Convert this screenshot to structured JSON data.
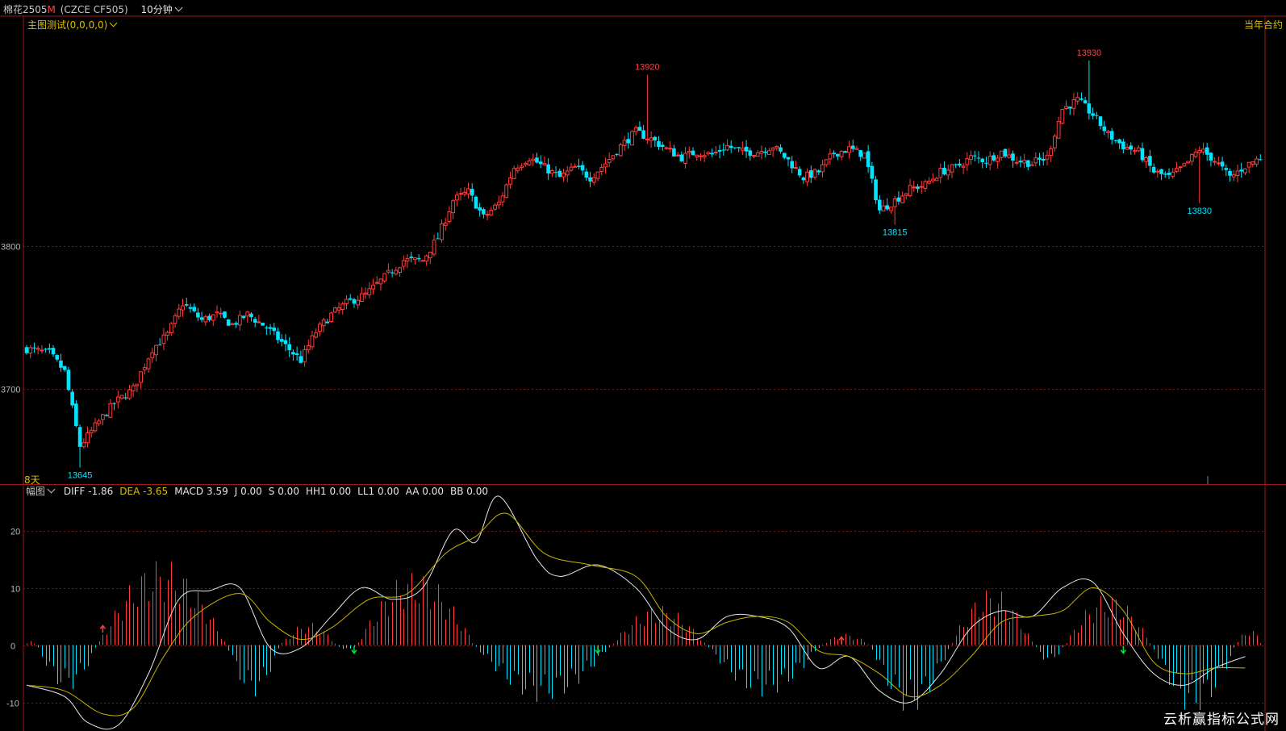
{
  "header": {
    "symbol": "棉花2505",
    "symbol_badge": "M",
    "code": "(CZCE CF505)",
    "period": "10分钟"
  },
  "main_chart": {
    "indicator_title": "主图测试(0,0,0,0)",
    "corner_label": "当年合约",
    "days_label": "8天"
  },
  "sub_chart": {
    "title": "幅图",
    "values": [
      {
        "label": "DIFF",
        "value": "-1.86",
        "color": "#e6e6e6"
      },
      {
        "label": "DEA",
        "value": "-3.65",
        "color": "#d8c000"
      },
      {
        "label": "MACD",
        "value": "3.59",
        "color": "#e6e6e6"
      },
      {
        "label": "J",
        "value": "0.00",
        "color": "#e6e6e6"
      },
      {
        "label": "S",
        "value": "0.00",
        "color": "#e6e6e6"
      },
      {
        "label": "HH1",
        "value": "0.00",
        "color": "#e6e6e6"
      },
      {
        "label": "LL1",
        "value": "0.00",
        "color": "#e6e6e6"
      },
      {
        "label": "AA",
        "value": "0.00",
        "color": "#e6e6e6"
      },
      {
        "label": "BB",
        "value": "0.00",
        "color": "#e6e6e6"
      }
    ]
  },
  "watermark": "云析赢指标公式网",
  "colors": {
    "up": "#ff3b3b",
    "down": "#00e5ff",
    "grid": "#7a1a1a",
    "frame": "#a01818",
    "dea": "#c8b400",
    "diff": "#e6e6e6",
    "label": "#d8c000"
  },
  "chart_data": [
    {
      "type": "candlestick",
      "title": "主图测试(0,0,0,0)",
      "y_tick_labels": [
        "3800",
        "3700"
      ],
      "y_ticks": [
        13800,
        13700
      ],
      "ylim": [
        13639,
        13952
      ],
      "annotations": [
        {
          "text": "13920",
          "value": 13920,
          "kind": "high",
          "color": "#ff4444"
        },
        {
          "text": "13930",
          "value": 13930,
          "kind": "high",
          "color": "#ff4444"
        },
        {
          "text": "13815",
          "value": 13815,
          "kind": "low",
          "color": "#00e5ff"
        },
        {
          "text": "13830",
          "value": 13830,
          "kind": "low",
          "color": "#00e5ff"
        },
        {
          "text": "13645",
          "value": 13645,
          "kind": "low",
          "color": "#00e5ff"
        }
      ],
      "close_path": [
        [
          0,
          13728
        ],
        [
          6,
          13725
        ],
        [
          10,
          13712
        ],
        [
          14,
          13660
        ],
        [
          19,
          13677
        ],
        [
          23,
          13690
        ],
        [
          28,
          13700
        ],
        [
          33,
          13728
        ],
        [
          37,
          13738
        ],
        [
          41,
          13760
        ],
        [
          46,
          13748
        ],
        [
          50,
          13752
        ],
        [
          54,
          13745
        ],
        [
          58,
          13752
        ],
        [
          63,
          13743
        ],
        [
          68,
          13730
        ],
        [
          72,
          13720
        ],
        [
          76,
          13740
        ],
        [
          80,
          13752
        ],
        [
          84,
          13760
        ],
        [
          89,
          13766
        ],
        [
          94,
          13778
        ],
        [
          99,
          13790
        ],
        [
          104,
          13790
        ],
        [
          108,
          13806
        ],
        [
          112,
          13832
        ],
        [
          116,
          13838
        ],
        [
          120,
          13820
        ],
        [
          124,
          13830
        ],
        [
          128,
          13855
        ],
        [
          132,
          13862
        ],
        [
          136,
          13855
        ],
        [
          140,
          13848
        ],
        [
          144,
          13855
        ],
        [
          148,
          13848
        ],
        [
          152,
          13858
        ],
        [
          156,
          13870
        ],
        [
          160,
          13880
        ],
        [
          164,
          13875
        ],
        [
          168,
          13868
        ],
        [
          172,
          13862
        ],
        [
          176,
          13866
        ],
        [
          180,
          13864
        ],
        [
          184,
          13870
        ],
        [
          188,
          13866
        ],
        [
          192,
          13866
        ],
        [
          196,
          13870
        ],
        [
          200,
          13860
        ],
        [
          204,
          13848
        ],
        [
          208,
          13852
        ],
        [
          212,
          13865
        ],
        [
          216,
          13868
        ],
        [
          220,
          13864
        ],
        [
          224,
          13825
        ],
        [
          228,
          13832
        ],
        [
          232,
          13840
        ],
        [
          236,
          13843
        ],
        [
          240,
          13852
        ],
        [
          244,
          13855
        ],
        [
          248,
          13862
        ],
        [
          252,
          13860
        ],
        [
          256,
          13866
        ],
        [
          260,
          13860
        ],
        [
          264,
          13858
        ],
        [
          268,
          13862
        ],
        [
          272,
          13896
        ],
        [
          276,
          13902
        ],
        [
          280,
          13892
        ],
        [
          284,
          13878
        ],
        [
          288,
          13870
        ],
        [
          292,
          13866
        ],
        [
          296,
          13852
        ],
        [
          300,
          13848
        ],
        [
          304,
          13856
        ],
        [
          308,
          13868
        ],
        [
          312,
          13860
        ],
        [
          316,
          13848
        ],
        [
          320,
          13856
        ],
        [
          324,
          13862
        ]
      ]
    },
    {
      "type": "line",
      "title": "幅图",
      "y_tick_labels": [
        "20",
        "10",
        "0",
        "-10"
      ],
      "y_ticks": [
        20,
        10,
        0,
        -10
      ],
      "ylim": [
        -15,
        26
      ],
      "series": [
        {
          "name": "DIFF",
          "color": "#e6e6e6",
          "points": [
            [
              0,
              -7
            ],
            [
              10,
              -9
            ],
            [
              16,
              -13.5
            ],
            [
              24,
              -14
            ],
            [
              32,
              -5
            ],
            [
              40,
              8
            ],
            [
              48,
              9.5
            ],
            [
              56,
              10
            ],
            [
              64,
              -0.5
            ],
            [
              72,
              -0.5
            ],
            [
              80,
              5
            ],
            [
              88,
              10
            ],
            [
              96,
              8
            ],
            [
              104,
              10
            ],
            [
              112,
              20
            ],
            [
              118,
              18
            ],
            [
              124,
              26
            ],
            [
              134,
              15
            ],
            [
              140,
              12
            ],
            [
              150,
              14
            ],
            [
              160,
              10
            ],
            [
              168,
              3
            ],
            [
              176,
              1
            ],
            [
              184,
              5
            ],
            [
              192,
              5
            ],
            [
              200,
              3
            ],
            [
              208,
              -4
            ],
            [
              216,
              -2
            ],
            [
              224,
              -8
            ],
            [
              232,
              -10
            ],
            [
              240,
              -5
            ],
            [
              248,
              3
            ],
            [
              256,
              6
            ],
            [
              264,
              5
            ],
            [
              272,
              10
            ],
            [
              280,
              11
            ],
            [
              288,
              2
            ],
            [
              296,
              -5
            ],
            [
              304,
              -7
            ],
            [
              312,
              -4
            ],
            [
              320,
              -2
            ]
          ]
        },
        {
          "name": "DEA",
          "color": "#c8b400",
          "points": [
            [
              0,
              -7
            ],
            [
              10,
              -8
            ],
            [
              20,
              -12
            ],
            [
              28,
              -11
            ],
            [
              36,
              -2
            ],
            [
              44,
              5
            ],
            [
              56,
              9
            ],
            [
              64,
              4
            ],
            [
              72,
              1
            ],
            [
              80,
              3
            ],
            [
              90,
              8
            ],
            [
              100,
              9
            ],
            [
              110,
              16
            ],
            [
              118,
              19
            ],
            [
              126,
              23
            ],
            [
              136,
              16
            ],
            [
              148,
              14
            ],
            [
              160,
              12
            ],
            [
              168,
              5
            ],
            [
              176,
              2
            ],
            [
              184,
              4
            ],
            [
              192,
              5
            ],
            [
              200,
              4
            ],
            [
              208,
              -1
            ],
            [
              216,
              -2
            ],
            [
              224,
              -5
            ],
            [
              232,
              -9
            ],
            [
              240,
              -7
            ],
            [
              248,
              -2
            ],
            [
              256,
              4
            ],
            [
              264,
              5
            ],
            [
              272,
              6
            ],
            [
              280,
              10
            ],
            [
              288,
              6
            ],
            [
              296,
              -3
            ],
            [
              304,
              -5
            ],
            [
              312,
              -4
            ],
            [
              320,
              -4
            ]
          ]
        }
      ],
      "histogram_segments": [
        {
          "name": "MACD",
          "from": 0,
          "to": 2,
          "sign": "+",
          "peak": 0.7
        },
        {
          "name": "MACD",
          "from": 3,
          "to": 18,
          "sign": "-",
          "peak": -8
        },
        {
          "name": "MACD",
          "from": 19,
          "to": 52,
          "sign": "+",
          "peak": 15
        },
        {
          "name": "MACD",
          "from": 53,
          "to": 66,
          "sign": "-",
          "peak": -9
        },
        {
          "name": "MACD",
          "from": 67,
          "to": 81,
          "sign": "+",
          "peak": 4
        },
        {
          "name": "MACD",
          "from": 82,
          "to": 86,
          "sign": "-",
          "peak": -1
        },
        {
          "name": "MACD",
          "from": 87,
          "to": 117,
          "sign": "+",
          "peak": 13
        },
        {
          "name": "MACD",
          "from": 118,
          "to": 153,
          "sign": "-",
          "peak": -10
        },
        {
          "name": "MACD",
          "from": 154,
          "to": 178,
          "sign": "+",
          "peak": 7
        },
        {
          "name": "MACD",
          "from": 179,
          "to": 208,
          "sign": "-",
          "peak": -9
        },
        {
          "name": "MACD",
          "from": 209,
          "to": 221,
          "sign": "+",
          "peak": 2
        },
        {
          "name": "MACD",
          "from": 222,
          "to": 242,
          "sign": "-",
          "peak": -12
        },
        {
          "name": "MACD",
          "from": 243,
          "to": 264,
          "sign": "+",
          "peak": 10
        },
        {
          "name": "MACD",
          "from": 265,
          "to": 272,
          "sign": "-",
          "peak": -3
        },
        {
          "name": "MACD",
          "from": 273,
          "to": 295,
          "sign": "+",
          "peak": 9
        },
        {
          "name": "MACD",
          "from": 296,
          "to": 317,
          "sign": "-",
          "peak": -12
        },
        {
          "name": "MACD",
          "from": 318,
          "to": 324,
          "sign": "+",
          "peak": 3
        }
      ],
      "signals": [
        {
          "kind": "up",
          "color": "#ff3b3b",
          "bar": 20,
          "value": 3
        },
        {
          "kind": "down",
          "color": "#00e040",
          "bar": 86,
          "value": -1
        },
        {
          "kind": "down",
          "color": "#00e040",
          "bar": 150,
          "value": -1
        },
        {
          "kind": "up",
          "color": "#ff3b3b",
          "bar": 214,
          "value": 1
        },
        {
          "kind": "down",
          "color": "#00e040",
          "bar": 288,
          "value": -1
        }
      ]
    }
  ]
}
